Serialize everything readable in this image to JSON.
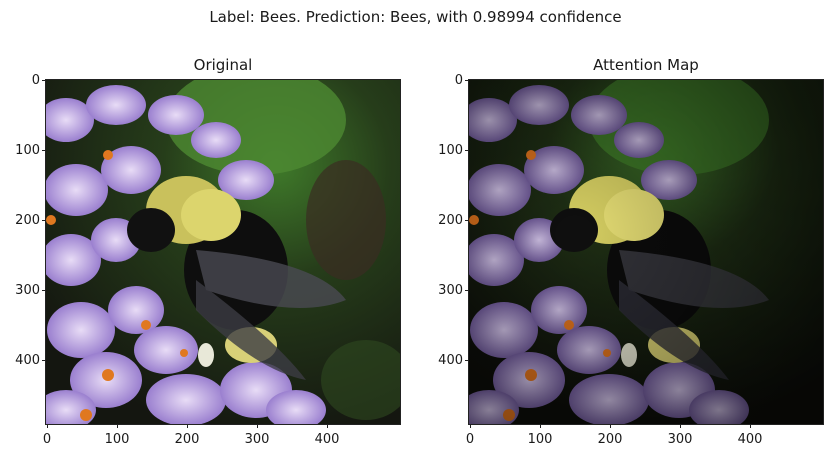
{
  "suptitle": "Label: Bees. Prediction: Bees, with 0.98994 confidence",
  "panels": [
    {
      "title": "Original"
    },
    {
      "title": "Attention Map"
    }
  ],
  "axes": {
    "y_ticks": [
      "0",
      "100",
      "200",
      "300",
      "400"
    ],
    "x_ticks": [
      "0",
      "100",
      "200",
      "300",
      "400"
    ]
  }
}
